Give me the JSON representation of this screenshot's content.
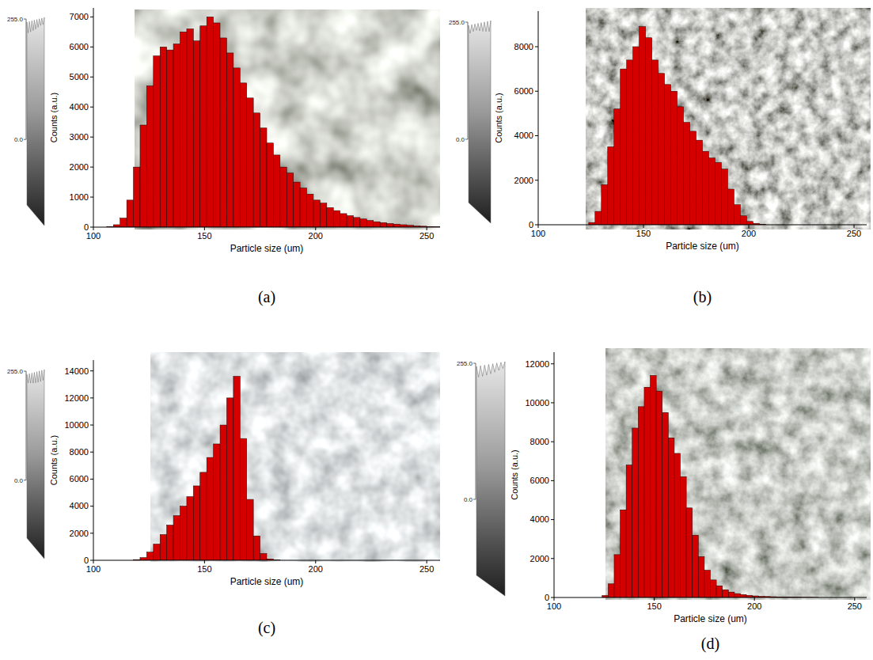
{
  "chart_data": [
    {
      "type": "histogram",
      "title": "(a)",
      "x_label": "Particle size (um)",
      "y_label": "Counts (a.u.)",
      "bins": [
        100,
        103,
        106,
        109,
        112,
        115,
        118,
        121,
        124,
        127,
        130,
        133,
        136,
        139,
        142,
        145,
        148,
        151,
        154,
        157,
        160,
        163,
        166,
        169,
        172,
        175,
        178,
        181,
        184,
        187,
        190,
        193,
        196,
        199,
        202,
        205,
        208,
        211,
        214,
        217,
        220,
        223,
        226,
        229,
        232,
        235,
        238,
        241,
        244,
        247,
        250,
        253,
        256
      ],
      "values": [
        0,
        0,
        20,
        80,
        300,
        900,
        2000,
        3400,
        4700,
        5700,
        6000,
        5900,
        6100,
        6500,
        6600,
        6200,
        6700,
        7000,
        6800,
        6300,
        5800,
        5300,
        4800,
        4300,
        3800,
        3300,
        2800,
        2400,
        2000,
        1800,
        1500,
        1300,
        1100,
        900,
        800,
        650,
        550,
        450,
        380,
        320,
        270,
        220,
        180,
        150,
        120,
        100,
        80,
        60,
        40,
        30,
        20,
        10
      ],
      "color": "#d40000",
      "xlim": [
        100,
        256
      ],
      "xticks": [
        100,
        150,
        200,
        250
      ],
      "ylim": [
        0,
        7300
      ],
      "yticks": [
        0,
        1000,
        2000,
        3000,
        4000,
        5000,
        6000,
        7000
      ],
      "grid": false,
      "surface_ticks": [
        {
          "value": 255,
          "label": "255.0"
        },
        {
          "value": 0,
          "label": "0.0"
        }
      ]
    },
    {
      "type": "histogram",
      "title": "(b)",
      "x_label": "Particle size (um)",
      "y_label": "Counts (a.u.)",
      "bins": [
        100,
        103,
        106,
        109,
        112,
        115,
        118,
        121,
        124,
        127,
        130,
        133,
        136,
        139,
        142,
        145,
        148,
        151,
        154,
        157,
        160,
        163,
        166,
        169,
        172,
        175,
        178,
        181,
        184,
        187,
        190,
        193,
        196,
        199,
        202,
        205,
        208,
        211,
        214,
        217,
        220,
        223,
        226,
        229,
        232,
        235,
        238,
        241,
        244,
        247,
        250,
        253,
        256
      ],
      "values": [
        0,
        0,
        0,
        0,
        0,
        0,
        0,
        0,
        100,
        600,
        1800,
        3500,
        5200,
        7000,
        7400,
        8000,
        8900,
        8400,
        7400,
        6800,
        6300,
        6000,
        5300,
        4600,
        4200,
        3800,
        3300,
        3000,
        2800,
        2500,
        1600,
        900,
        400,
        150,
        60,
        20,
        0,
        0,
        0,
        0,
        0,
        0,
        0,
        0,
        0,
        0,
        0,
        0,
        0,
        0,
        0,
        0
      ],
      "color": "#d40000",
      "xlim": [
        100,
        256
      ],
      "xticks": [
        100,
        150,
        200,
        250
      ],
      "ylim": [
        0,
        9600
      ],
      "yticks": [
        0,
        2000,
        4000,
        6000,
        8000
      ],
      "grid": false,
      "surface_ticks": [
        {
          "value": 255,
          "label": "255.0"
        },
        {
          "value": 0,
          "label": "0.0"
        }
      ]
    },
    {
      "type": "histogram",
      "title": "(c)",
      "x_label": "Particle size (um)",
      "y_label": "Counts (a.u.)",
      "bins": [
        100,
        103,
        106,
        109,
        112,
        115,
        118,
        121,
        124,
        127,
        130,
        133,
        136,
        139,
        142,
        145,
        148,
        151,
        154,
        157,
        160,
        163,
        166,
        169,
        172,
        175,
        178,
        181,
        184,
        187,
        190,
        193,
        196,
        199,
        202,
        205,
        208,
        211,
        214,
        217,
        220,
        223,
        226,
        229,
        232,
        235,
        238,
        241,
        244,
        247,
        250,
        253,
        256
      ],
      "values": [
        0,
        0,
        0,
        0,
        0,
        0,
        50,
        200,
        600,
        1200,
        1900,
        2600,
        3300,
        4000,
        4700,
        5500,
        6500,
        7600,
        8600,
        10000,
        12000,
        13600,
        9000,
        4500,
        1800,
        500,
        100,
        20,
        0,
        0,
        0,
        0,
        0,
        0,
        0,
        0,
        0,
        0,
        0,
        0,
        0,
        0,
        0,
        0,
        0,
        0,
        0,
        0,
        0,
        0,
        0,
        0
      ],
      "color": "#d40000",
      "xlim": [
        100,
        256
      ],
      "xticks": [
        100,
        150,
        200,
        250
      ],
      "ylim": [
        0,
        14800
      ],
      "yticks": [
        0,
        2000,
        4000,
        6000,
        8000,
        10000,
        12000,
        14000
      ],
      "grid": false,
      "surface_ticks": [
        {
          "value": 255,
          "label": "255.0"
        },
        {
          "value": 0,
          "label": "0.0"
        }
      ]
    },
    {
      "type": "histogram",
      "title": "(d)",
      "x_label": "Particle size (um)",
      "y_label": "Counts (a.u.)",
      "bins": [
        100,
        103,
        106,
        109,
        112,
        115,
        118,
        121,
        124,
        127,
        130,
        133,
        136,
        139,
        142,
        145,
        148,
        151,
        154,
        157,
        160,
        163,
        166,
        169,
        172,
        175,
        178,
        181,
        184,
        187,
        190,
        193,
        196,
        199,
        202,
        205,
        208,
        211,
        214,
        217,
        220,
        223,
        226,
        229,
        232,
        235,
        238,
        241,
        244,
        247,
        250,
        253,
        256
      ],
      "values": [
        0,
        0,
        0,
        0,
        0,
        0,
        0,
        0,
        100,
        700,
        2200,
        4500,
        6800,
        8700,
        9800,
        10800,
        11400,
        10600,
        9500,
        8200,
        7400,
        6200,
        4600,
        3200,
        2100,
        1400,
        900,
        600,
        400,
        280,
        200,
        150,
        110,
        80,
        60,
        50,
        40,
        30,
        25,
        20,
        15,
        10,
        10,
        5,
        0,
        0,
        0,
        0,
        0,
        0,
        0,
        0
      ],
      "color": "#d40000",
      "xlim": [
        100,
        256
      ],
      "xticks": [
        100,
        150,
        200,
        250
      ],
      "ylim": [
        0,
        12600
      ],
      "yticks": [
        0,
        2000,
        4000,
        6000,
        8000,
        10000,
        12000
      ],
      "grid": false,
      "surface_ticks": [
        {
          "value": 255,
          "label": "255.0"
        },
        {
          "value": 0,
          "label": "0.0"
        }
      ]
    }
  ]
}
